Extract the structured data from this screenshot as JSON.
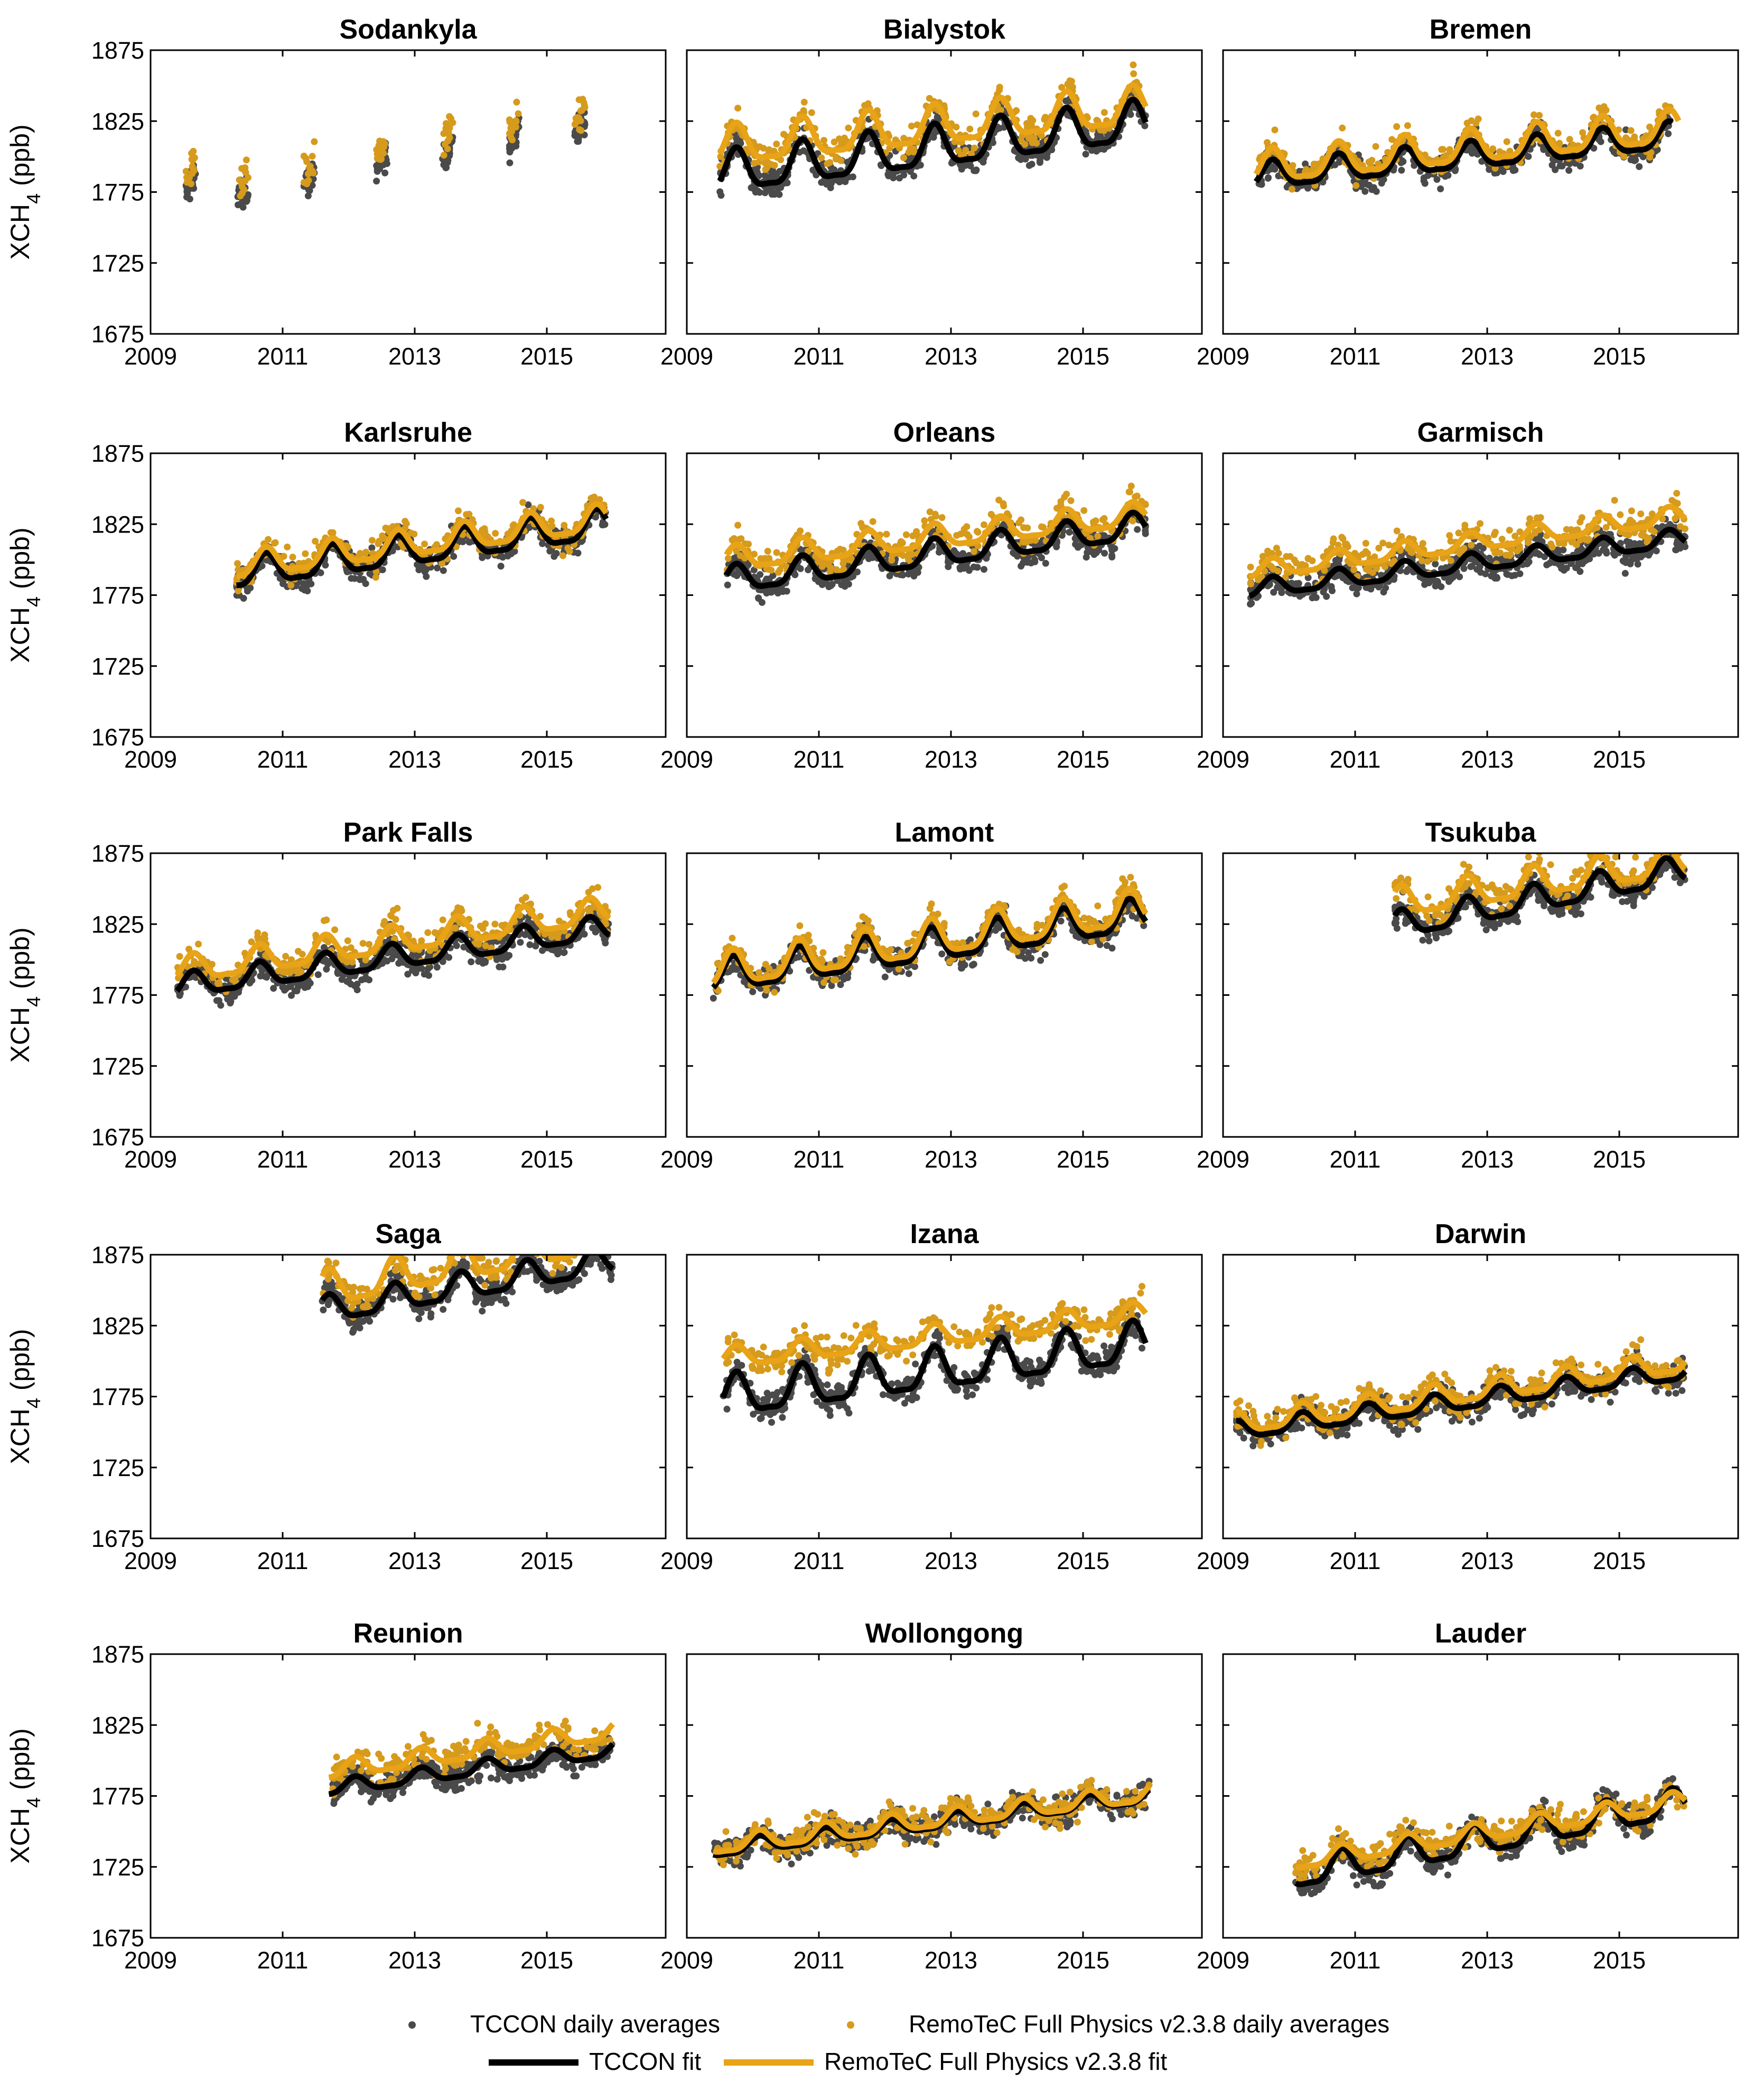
{
  "colors": {
    "tccon": "#000000",
    "tccon_dots": "#4a4a4a",
    "remotec": "#e8a317",
    "remotec_dots": "#d69a1c"
  },
  "chart_data": {
    "type": "scatter",
    "layout": "small multiples, 5 rows x 3 columns",
    "xlim": [
      2009,
      2016.8
    ],
    "ylim": [
      1675,
      1875
    ],
    "xticks": [
      "2009",
      "2011",
      "2013",
      "2015"
    ],
    "yticks": [
      "1875",
      "1825",
      "1775",
      "1725",
      "1675"
    ],
    "ylabel": "XCH₄ (ppb)",
    "legend": {
      "placement": "bottom-center",
      "items": [
        {
          "label": "TCCON daily averages",
          "kind": "dot",
          "series": "tccon_daily"
        },
        {
          "label": "RemoTeC Full Physics v2.3.8 daily averages",
          "kind": "dot",
          "series": "remotec_daily"
        },
        {
          "label": "TCCON fit",
          "kind": "line",
          "series": "tccon_fit"
        },
        {
          "label": "RemoTeC Full Physics v2.3.8 fit",
          "kind": "line",
          "series": "remotec_fit"
        }
      ]
    },
    "panels": [
      {
        "title": "Sodankyla",
        "has_fit": false,
        "seasons": [
          2009.6,
          2010.4,
          2011.4,
          2012.5,
          2013.5,
          2014.5,
          2015.5
        ],
        "tccon_fit": {
          "start": 2009.5,
          "end": 2015.7,
          "base": 1772,
          "trend": 8,
          "amp": 9,
          "phase": 0.7
        },
        "remotec_fit": {
          "start": 2009.5,
          "end": 2015.7,
          "base": 1782,
          "trend": 8,
          "amp": 10,
          "phase": 0.7
        }
      },
      {
        "title": "Bialystok",
        "has_fit": true,
        "tccon_fit": {
          "start": 2009.5,
          "end": 2015.95,
          "base": 1787,
          "trend": 5.6,
          "amp": 14,
          "phase": 0.75
        },
        "remotec_fit": {
          "start": 2009.5,
          "end": 2015.95,
          "base": 1806,
          "trend": 4.4,
          "amp": 13,
          "phase": 0.75
        }
      },
      {
        "title": "Bremen",
        "has_fit": true,
        "tccon_fit": {
          "start": 2009.5,
          "end": 2015.8,
          "base": 1785,
          "trend": 4.5,
          "amp": 9,
          "phase": 0.75
        },
        "remotec_fit": {
          "start": 2009.5,
          "end": 2015.9,
          "base": 1791,
          "trend": 4.5,
          "amp": 11,
          "phase": 0.75
        }
      },
      {
        "title": "Karlsruhe",
        "has_fit": true,
        "tccon_fit": {
          "start": 2010.3,
          "end": 2015.9,
          "base": 1784,
          "trend": 6.2,
          "amp": 10,
          "phase": 0.75
        },
        "remotec_fit": {
          "start": 2010.3,
          "end": 2015.9,
          "base": 1790,
          "trend": 6.0,
          "amp": 9,
          "phase": 0.75
        }
      },
      {
        "title": "Orleans",
        "has_fit": true,
        "tccon_fit": {
          "start": 2009.6,
          "end": 2015.95,
          "base": 1784,
          "trend": 6.0,
          "amp": 9,
          "phase": 0.75
        },
        "remotec_fit": {
          "start": 2009.6,
          "end": 2015.95,
          "base": 1799,
          "trend": 5.0,
          "amp": 8,
          "phase": 0.75
        }
      },
      {
        "title": "Garmisch",
        "has_fit": true,
        "tccon_fit": {
          "start": 2009.4,
          "end": 2016.0,
          "base": 1779,
          "trend": 5.5,
          "amp": 6,
          "phase": 0.75
        },
        "remotec_fit": {
          "start": 2009.4,
          "end": 2016.0,
          "base": 1792,
          "trend": 6.0,
          "amp": 6,
          "phase": 0.75
        }
      },
      {
        "title": "Park Falls",
        "has_fit": true,
        "tccon_fit": {
          "start": 2009.4,
          "end": 2015.95,
          "base": 1781,
          "trend": 6.3,
          "amp": 8,
          "phase": 0.65
        },
        "remotec_fit": {
          "start": 2009.4,
          "end": 2015.95,
          "base": 1792,
          "trend": 6.5,
          "amp": 9,
          "phase": 0.65
        }
      },
      {
        "title": "Lamont",
        "has_fit": true,
        "tccon_fit": {
          "start": 2009.4,
          "end": 2015.95,
          "base": 1787,
          "trend": 6.7,
          "amp": 11,
          "phase": 0.7
        },
        "remotec_fit": {
          "start": 2009.4,
          "end": 2015.95,
          "base": 1791,
          "trend": 7.0,
          "amp": 12,
          "phase": 0.7
        }
      },
      {
        "title": "Tsukuba",
        "has_fit": true,
        "tccon_fit": {
          "start": 2011.6,
          "end": 2016.0,
          "base": 1804,
          "trend": 9.0,
          "amp": 9,
          "phase": 0.7
        },
        "remotec_fit": {
          "start": 2011.6,
          "end": 2016.0,
          "base": 1824,
          "trend": 7.0,
          "amp": 10,
          "phase": 0.7
        }
      },
      {
        "title": "Saga",
        "has_fit": true,
        "tccon_fit": {
          "start": 2011.6,
          "end": 2016.0,
          "base": 1818,
          "trend": 8.0,
          "amp": 9,
          "phase": 0.7
        },
        "remotec_fit": {
          "start": 2011.6,
          "end": 2016.0,
          "base": 1830,
          "trend": 9.0,
          "amp": 12,
          "phase": 0.7
        }
      },
      {
        "title": "Izana",
        "has_fit": true,
        "tccon_fit": {
          "start": 2009.55,
          "end": 2015.95,
          "base": 1773,
          "trend": 6.0,
          "amp": 14,
          "phase": 0.75
        },
        "remotec_fit": {
          "start": 2009.55,
          "end": 2015.95,
          "base": 1801,
          "trend": 5.0,
          "amp": 7,
          "phase": 0.75
        }
      },
      {
        "title": "Darwin",
        "has_fit": true,
        "tccon_fit": {
          "start": 2009.2,
          "end": 2016.0,
          "base": 1752,
          "trend": 6.2,
          "amp": 6,
          "phase": 0.2
        },
        "remotec_fit": {
          "start": 2009.2,
          "end": 2016.0,
          "base": 1757,
          "trend": 6.5,
          "amp": 7,
          "phase": 0.2
        }
      },
      {
        "title": "Reunion",
        "has_fit": true,
        "tccon_fit": {
          "start": 2011.7,
          "end": 2016.0,
          "base": 1766,
          "trend": 6.3,
          "amp": 5,
          "phase": 0.1
        },
        "remotec_fit": {
          "start": 2011.7,
          "end": 2016.0,
          "base": 1778,
          "trend": 6.5,
          "amp": 6,
          "phase": 0.1
        }
      },
      {
        "title": "Wollongong",
        "has_fit": true,
        "tccon_fit": {
          "start": 2009.4,
          "end": 2016.0,
          "base": 1737,
          "trend": 5.8,
          "amp": 5,
          "phase": 0.1
        },
        "remotec_fit": {
          "start": 2009.4,
          "end": 2016.0,
          "base": 1740,
          "trend": 5.6,
          "amp": 6,
          "phase": 0.1
        }
      },
      {
        "title": "Lauder",
        "has_fit": true,
        "tccon_fit": {
          "start": 2010.1,
          "end": 2016.0,
          "base": 1714,
          "trend": 8.5,
          "amp": 10,
          "phase": 0.8
        },
        "remotec_fit": {
          "start": 2010.1,
          "end": 2016.0,
          "base": 1724,
          "trend": 7.3,
          "amp": 6,
          "phase": 0.8
        }
      }
    ]
  }
}
